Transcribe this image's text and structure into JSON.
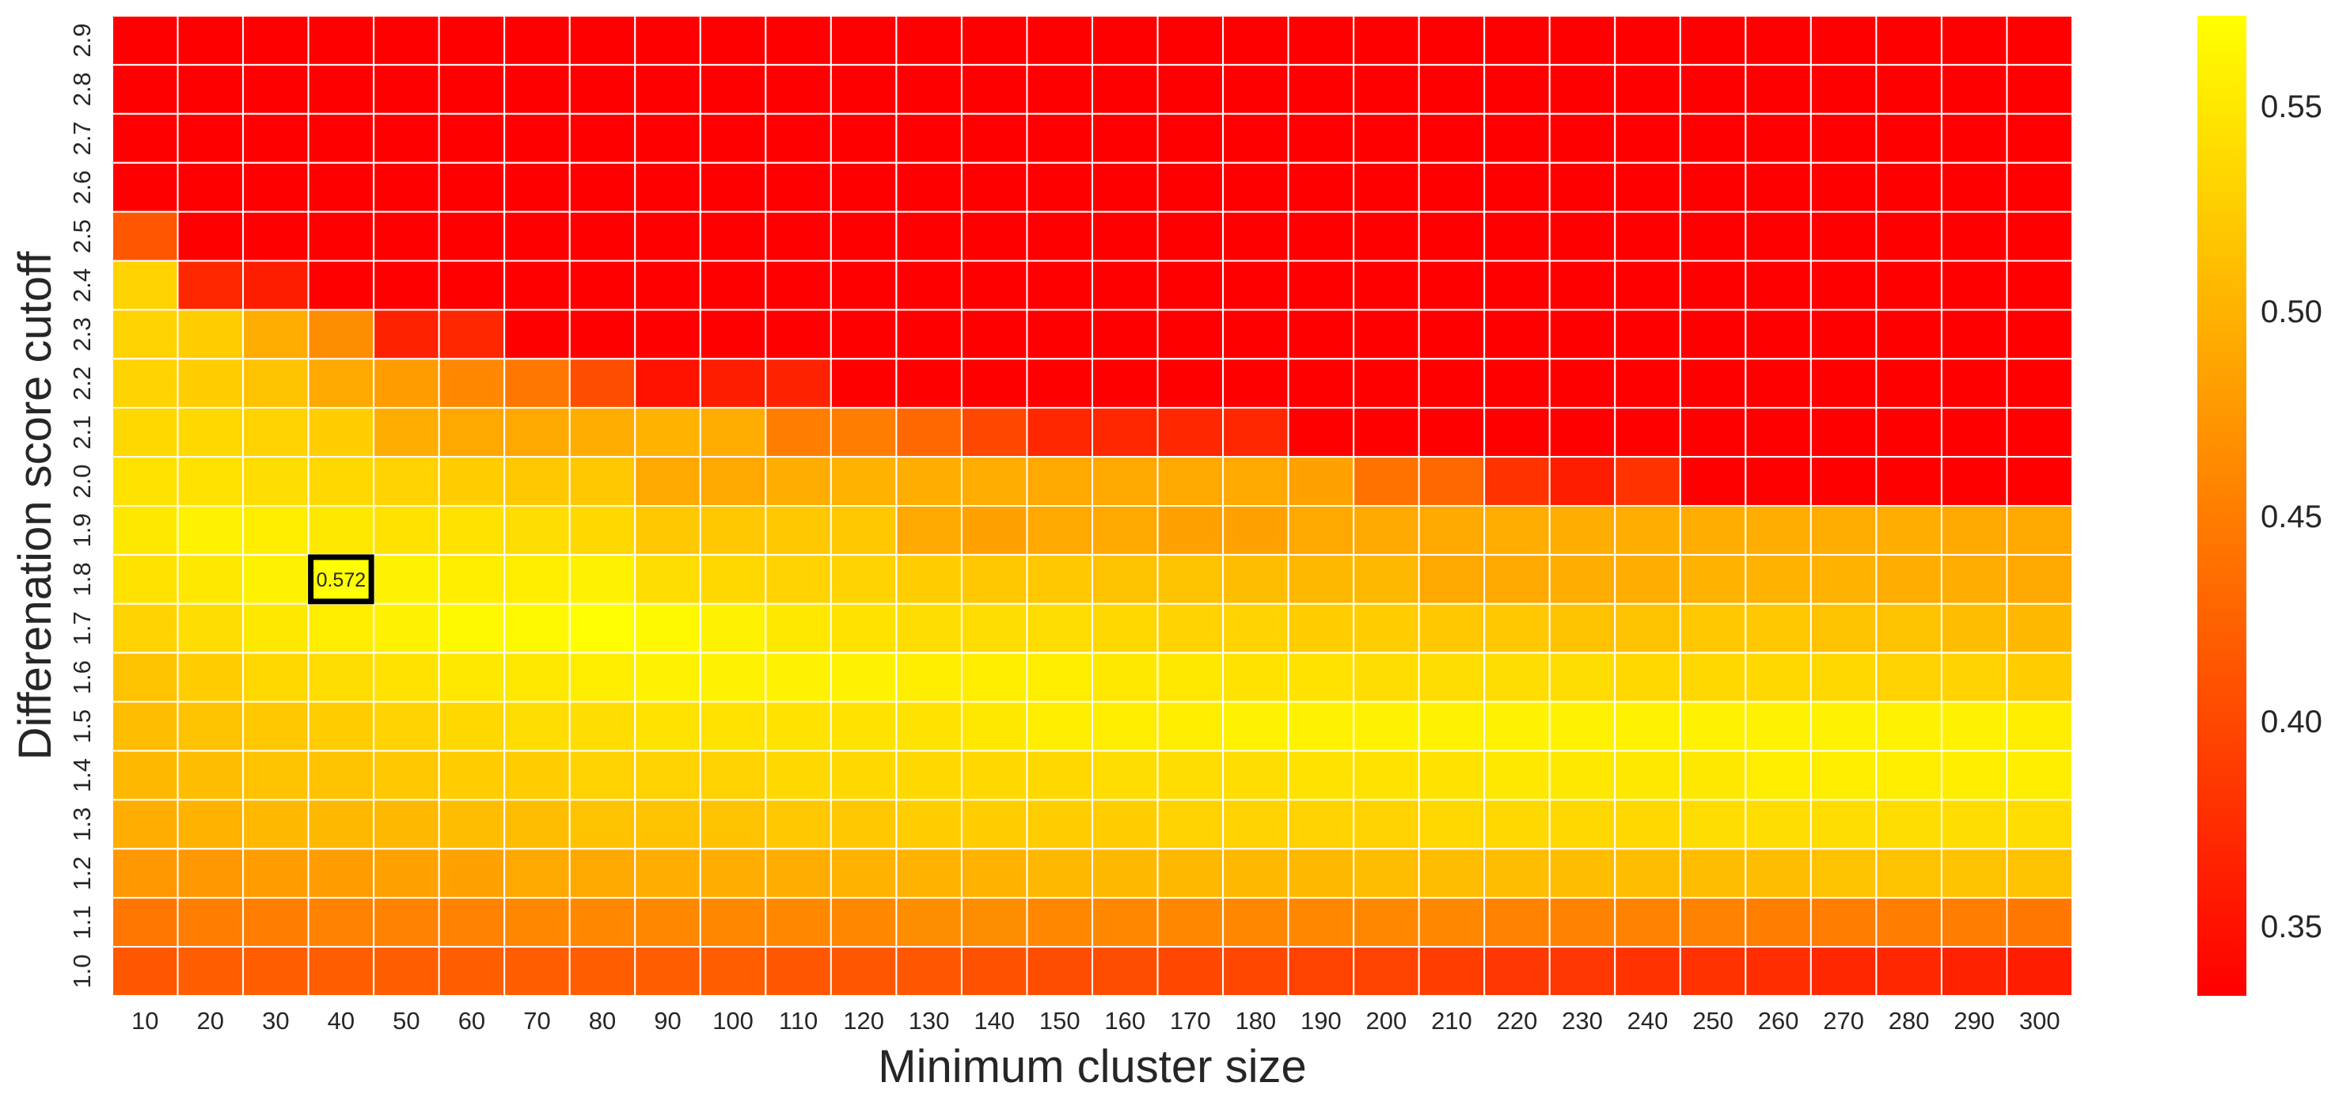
{
  "chart_data": {
    "type": "heatmap",
    "title": "",
    "xlabel": "Minimum cluster size",
    "ylabel": "Differenation score cutoff",
    "x_categories": [
      "10",
      "20",
      "30",
      "40",
      "50",
      "60",
      "70",
      "80",
      "90",
      "100",
      "110",
      "120",
      "130",
      "140",
      "150",
      "160",
      "170",
      "180",
      "190",
      "200",
      "210",
      "220",
      "230",
      "240",
      "250",
      "260",
      "270",
      "280",
      "290",
      "300"
    ],
    "y_categories": [
      "2.9",
      "2.8",
      "2.7",
      "2.6",
      "2.5",
      "2.4",
      "2.3",
      "2.2",
      "2.1",
      "2.0",
      "1.9",
      "1.8",
      "1.7",
      "1.6",
      "1.5",
      "1.4",
      "1.3",
      "1.2",
      "1.1",
      "1.0"
    ],
    "values": [
      [
        0.33,
        0.33,
        0.33,
        0.33,
        0.33,
        0.33,
        0.33,
        0.33,
        0.33,
        0.33,
        0.33,
        0.33,
        0.33,
        0.33,
        0.33,
        0.33,
        0.33,
        0.33,
        0.33,
        0.33,
        0.33,
        0.33,
        0.33,
        0.33,
        0.33,
        0.33,
        0.33,
        0.33,
        0.33,
        0.33
      ],
      [
        0.33,
        0.33,
        0.33,
        0.33,
        0.33,
        0.33,
        0.33,
        0.33,
        0.33,
        0.33,
        0.33,
        0.33,
        0.33,
        0.33,
        0.33,
        0.33,
        0.33,
        0.33,
        0.33,
        0.33,
        0.33,
        0.33,
        0.33,
        0.33,
        0.33,
        0.33,
        0.33,
        0.33,
        0.33,
        0.33
      ],
      [
        0.33,
        0.33,
        0.33,
        0.33,
        0.33,
        0.33,
        0.33,
        0.33,
        0.33,
        0.33,
        0.33,
        0.33,
        0.33,
        0.33,
        0.33,
        0.33,
        0.33,
        0.33,
        0.33,
        0.33,
        0.33,
        0.33,
        0.33,
        0.33,
        0.33,
        0.33,
        0.33,
        0.33,
        0.33,
        0.33
      ],
      [
        0.33,
        0.33,
        0.33,
        0.33,
        0.33,
        0.33,
        0.33,
        0.33,
        0.33,
        0.33,
        0.33,
        0.33,
        0.33,
        0.33,
        0.33,
        0.33,
        0.33,
        0.33,
        0.33,
        0.33,
        0.33,
        0.33,
        0.33,
        0.33,
        0.33,
        0.33,
        0.33,
        0.33,
        0.33,
        0.33
      ],
      [
        0.415,
        0.33,
        0.33,
        0.33,
        0.33,
        0.33,
        0.33,
        0.33,
        0.33,
        0.33,
        0.33,
        0.33,
        0.33,
        0.33,
        0.33,
        0.33,
        0.33,
        0.33,
        0.33,
        0.33,
        0.33,
        0.33,
        0.33,
        0.33,
        0.33,
        0.33,
        0.33,
        0.33,
        0.33,
        0.33
      ],
      [
        0.53,
        0.37,
        0.36,
        0.33,
        0.33,
        0.33,
        0.33,
        0.33,
        0.33,
        0.33,
        0.33,
        0.33,
        0.33,
        0.33,
        0.33,
        0.33,
        0.33,
        0.33,
        0.33,
        0.33,
        0.33,
        0.33,
        0.33,
        0.33,
        0.33,
        0.33,
        0.33,
        0.33,
        0.33,
        0.33
      ],
      [
        0.53,
        0.525,
        0.495,
        0.465,
        0.365,
        0.37,
        0.33,
        0.33,
        0.33,
        0.33,
        0.33,
        0.33,
        0.33,
        0.33,
        0.33,
        0.33,
        0.33,
        0.33,
        0.33,
        0.33,
        0.33,
        0.33,
        0.33,
        0.33,
        0.33,
        0.33,
        0.33,
        0.33,
        0.33,
        0.33
      ],
      [
        0.53,
        0.525,
        0.515,
        0.49,
        0.48,
        0.46,
        0.445,
        0.405,
        0.35,
        0.36,
        0.365,
        0.33,
        0.33,
        0.33,
        0.33,
        0.33,
        0.33,
        0.33,
        0.33,
        0.33,
        0.33,
        0.33,
        0.33,
        0.33,
        0.33,
        0.33,
        0.33,
        0.33,
        0.33,
        0.33
      ],
      [
        0.535,
        0.535,
        0.53,
        0.525,
        0.495,
        0.49,
        0.49,
        0.495,
        0.5,
        0.495,
        0.45,
        0.45,
        0.43,
        0.4,
        0.37,
        0.37,
        0.37,
        0.37,
        0.33,
        0.33,
        0.33,
        0.33,
        0.33,
        0.33,
        0.33,
        0.33,
        0.33,
        0.33,
        0.33,
        0.33
      ],
      [
        0.545,
        0.545,
        0.54,
        0.535,
        0.53,
        0.525,
        0.52,
        0.52,
        0.49,
        0.49,
        0.495,
        0.5,
        0.495,
        0.495,
        0.49,
        0.49,
        0.49,
        0.49,
        0.485,
        0.44,
        0.43,
        0.38,
        0.36,
        0.38,
        0.33,
        0.33,
        0.33,
        0.33,
        0.33,
        0.33
      ],
      [
        0.55,
        0.56,
        0.555,
        0.55,
        0.545,
        0.545,
        0.54,
        0.535,
        0.52,
        0.52,
        0.52,
        0.52,
        0.49,
        0.485,
        0.49,
        0.49,
        0.485,
        0.485,
        0.49,
        0.49,
        0.49,
        0.495,
        0.495,
        0.495,
        0.495,
        0.495,
        0.495,
        0.495,
        0.49,
        0.49
      ],
      [
        0.545,
        0.55,
        0.56,
        0.572,
        0.56,
        0.555,
        0.555,
        0.56,
        0.54,
        0.535,
        0.53,
        0.53,
        0.525,
        0.52,
        0.52,
        0.515,
        0.515,
        0.51,
        0.505,
        0.505,
        0.49,
        0.49,
        0.495,
        0.495,
        0.5,
        0.5,
        0.5,
        0.495,
        0.495,
        0.49
      ],
      [
        0.53,
        0.54,
        0.55,
        0.555,
        0.56,
        0.565,
        0.565,
        0.57,
        0.565,
        0.56,
        0.55,
        0.545,
        0.54,
        0.54,
        0.54,
        0.535,
        0.53,
        0.53,
        0.525,
        0.525,
        0.52,
        0.52,
        0.515,
        0.515,
        0.52,
        0.52,
        0.515,
        0.515,
        0.51,
        0.505
      ],
      [
        0.515,
        0.525,
        0.535,
        0.54,
        0.545,
        0.55,
        0.55,
        0.555,
        0.56,
        0.56,
        0.56,
        0.56,
        0.555,
        0.555,
        0.555,
        0.55,
        0.55,
        0.545,
        0.545,
        0.54,
        0.54,
        0.54,
        0.54,
        0.535,
        0.535,
        0.535,
        0.535,
        0.53,
        0.53,
        0.525
      ],
      [
        0.51,
        0.515,
        0.52,
        0.525,
        0.53,
        0.535,
        0.54,
        0.54,
        0.545,
        0.545,
        0.545,
        0.545,
        0.545,
        0.55,
        0.555,
        0.555,
        0.555,
        0.56,
        0.56,
        0.56,
        0.56,
        0.56,
        0.56,
        0.56,
        0.56,
        0.56,
        0.56,
        0.56,
        0.56,
        0.555
      ],
      [
        0.505,
        0.51,
        0.515,
        0.515,
        0.52,
        0.525,
        0.525,
        0.53,
        0.53,
        0.53,
        0.535,
        0.535,
        0.535,
        0.535,
        0.535,
        0.54,
        0.54,
        0.54,
        0.545,
        0.545,
        0.545,
        0.55,
        0.55,
        0.55,
        0.55,
        0.555,
        0.555,
        0.555,
        0.555,
        0.555
      ],
      [
        0.495,
        0.5,
        0.505,
        0.505,
        0.505,
        0.51,
        0.51,
        0.515,
        0.515,
        0.515,
        0.52,
        0.52,
        0.525,
        0.525,
        0.525,
        0.525,
        0.53,
        0.53,
        0.53,
        0.53,
        0.535,
        0.535,
        0.535,
        0.535,
        0.54,
        0.54,
        0.54,
        0.54,
        0.54,
        0.54
      ],
      [
        0.475,
        0.475,
        0.48,
        0.48,
        0.485,
        0.485,
        0.49,
        0.49,
        0.495,
        0.495,
        0.495,
        0.5,
        0.5,
        0.5,
        0.505,
        0.505,
        0.505,
        0.505,
        0.505,
        0.51,
        0.51,
        0.51,
        0.51,
        0.51,
        0.51,
        0.51,
        0.515,
        0.515,
        0.515,
        0.515
      ],
      [
        0.445,
        0.45,
        0.45,
        0.455,
        0.455,
        0.455,
        0.46,
        0.46,
        0.46,
        0.46,
        0.46,
        0.46,
        0.465,
        0.465,
        0.46,
        0.46,
        0.46,
        0.46,
        0.46,
        0.46,
        0.46,
        0.455,
        0.455,
        0.455,
        0.455,
        0.45,
        0.45,
        0.45,
        0.45,
        0.445
      ],
      [
        0.415,
        0.42,
        0.42,
        0.42,
        0.42,
        0.42,
        0.42,
        0.42,
        0.42,
        0.42,
        0.415,
        0.415,
        0.415,
        0.41,
        0.405,
        0.405,
        0.4,
        0.4,
        0.395,
        0.395,
        0.39,
        0.385,
        0.385,
        0.38,
        0.38,
        0.375,
        0.37,
        0.37,
        0.365,
        0.36
      ]
    ],
    "vmin": 0.333,
    "vmax": 0.572,
    "colormap": [
      "#ff0000",
      "#ffff00"
    ],
    "colorbar_ticks": [
      0.35,
      0.4,
      0.45,
      0.5,
      0.55
    ],
    "colorbar_tick_labels": [
      "0.35",
      "0.40",
      "0.45",
      "0.50",
      "0.55"
    ],
    "highlight": {
      "row_label": "1.8",
      "col_label": "40",
      "label": "0.572",
      "border_color": "#000000"
    },
    "grid": true,
    "grid_color": "#ffffff"
  }
}
